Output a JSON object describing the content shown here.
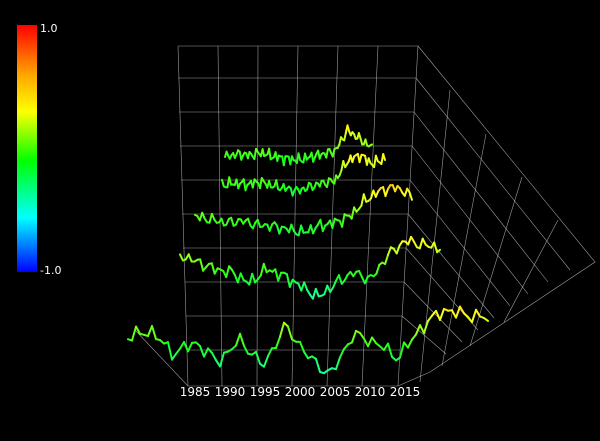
{
  "chart_data": {
    "type": "line",
    "projection": "3d-perspective",
    "x_ticks": [
      "1985",
      "1990",
      "1995",
      "2000",
      "2005",
      "2010",
      "2015"
    ],
    "xlim": [
      1983,
      2016
    ],
    "colorbar": {
      "max_label": "1.0",
      "min_label": "-1.0",
      "range": [
        -1.0,
        1.0
      ],
      "colormap": "rainbow"
    },
    "series": [
      {
        "x": [
          1988,
          1990,
          1992,
          1994,
          1996,
          1998,
          2000,
          2002,
          2004,
          2006,
          2008,
          2010,
          2012
        ],
        "values": [
          0.05,
          0.1,
          0.08,
          0.12,
          0.06,
          0.02,
          0.0,
          0.05,
          0.1,
          0.15,
          0.5,
          0.35,
          0.2
        ]
      },
      {
        "x": [
          1988,
          1990,
          1992,
          1994,
          1996,
          1998,
          2000,
          2002,
          2004,
          2006,
          2008,
          2010,
          2012,
          2014
        ],
        "values": [
          0.05,
          0.08,
          0.06,
          0.1,
          0.04,
          0.0,
          -0.05,
          0.02,
          0.08,
          0.12,
          0.45,
          0.55,
          0.4,
          0.5
        ]
      },
      {
        "x": [
          1986,
          1988,
          1990,
          1992,
          1994,
          1996,
          1998,
          2000,
          2002,
          2004,
          2006,
          2008,
          2010,
          2012,
          2014
        ],
        "values": [
          0.15,
          0.1,
          0.05,
          0.08,
          0.02,
          0.0,
          -0.05,
          -0.1,
          0.0,
          0.05,
          0.15,
          0.4,
          0.55,
          0.6,
          0.45
        ]
      },
      {
        "x": [
          1985,
          1987,
          1989,
          1991,
          1993,
          1995,
          1997,
          1999,
          2001,
          2003,
          2005,
          2007,
          2009,
          2011,
          2013,
          2015
        ],
        "values": [
          0.3,
          0.2,
          0.1,
          0.05,
          -0.1,
          0.1,
          0.0,
          -0.15,
          -0.3,
          -0.1,
          0.05,
          -0.05,
          0.3,
          0.5,
          0.45,
          0.4
        ]
      },
      {
        "x": [
          1983,
          1985,
          1987,
          1989,
          1991,
          1993,
          1995,
          1997,
          1999,
          2001,
          2003,
          2005,
          2007,
          2009,
          2011,
          2013,
          2015
        ],
        "values": [
          0.1,
          0.2,
          -0.1,
          0.05,
          -0.2,
          0.1,
          -0.25,
          0.3,
          -0.1,
          -0.35,
          0.2,
          0.1,
          -0.1,
          0.3,
          0.55,
          0.5,
          0.45
        ]
      }
    ]
  }
}
